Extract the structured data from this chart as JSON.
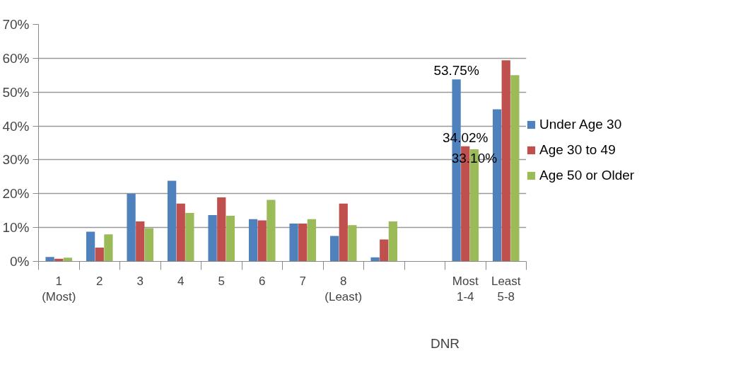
{
  "chart_data": {
    "type": "bar",
    "categories": [
      "1 (Most)",
      "2",
      "3",
      "4",
      "5",
      "6",
      "7",
      "8 (Least)",
      null,
      null,
      "Most 1-4",
      "Least 5-8"
    ],
    "series": [
      {
        "name": "Under Age 30",
        "color": "#4f81bd",
        "values": [
          1.3,
          8.8,
          20.0,
          23.8,
          13.7,
          12.5,
          11.2,
          7.5,
          1.2,
          null,
          53.75,
          44.9
        ],
        "value_labels": [
          null,
          null,
          null,
          null,
          null,
          null,
          null,
          null,
          null,
          null,
          "53.75%",
          null
        ]
      },
      {
        "name": "Age 30 to 49",
        "color": "#c0504d",
        "values": [
          0.8,
          4.1,
          11.8,
          17.1,
          18.9,
          12.1,
          11.2,
          17.1,
          6.5,
          null,
          34.02,
          59.4
        ],
        "value_labels": [
          null,
          null,
          null,
          null,
          null,
          null,
          null,
          null,
          null,
          null,
          "34.02%",
          null
        ]
      },
      {
        "name": "Age 50 or Older",
        "color": "#9bbb59",
        "values": [
          1.1,
          8.0,
          9.8,
          14.3,
          13.5,
          18.2,
          12.5,
          10.7,
          11.8,
          null,
          33.1,
          55.0
        ],
        "value_labels": [
          null,
          null,
          null,
          null,
          null,
          null,
          null,
          null,
          null,
          null,
          "33.10%",
          null
        ]
      }
    ],
    "annotations": [
      "DNR"
    ],
    "ylim": [
      0,
      70
    ],
    "yticks": [
      {
        "value": 0,
        "label": "0%"
      },
      {
        "value": 10,
        "label": "10%"
      },
      {
        "value": 20,
        "label": "20%"
      },
      {
        "value": 30,
        "label": "30%"
      },
      {
        "value": 40,
        "label": "40%"
      },
      {
        "value": 50,
        "label": "50%"
      },
      {
        "value": 60,
        "label": "60%"
      },
      {
        "value": 70,
        "label": "70%"
      }
    ],
    "grid": "y",
    "legend": "right"
  }
}
